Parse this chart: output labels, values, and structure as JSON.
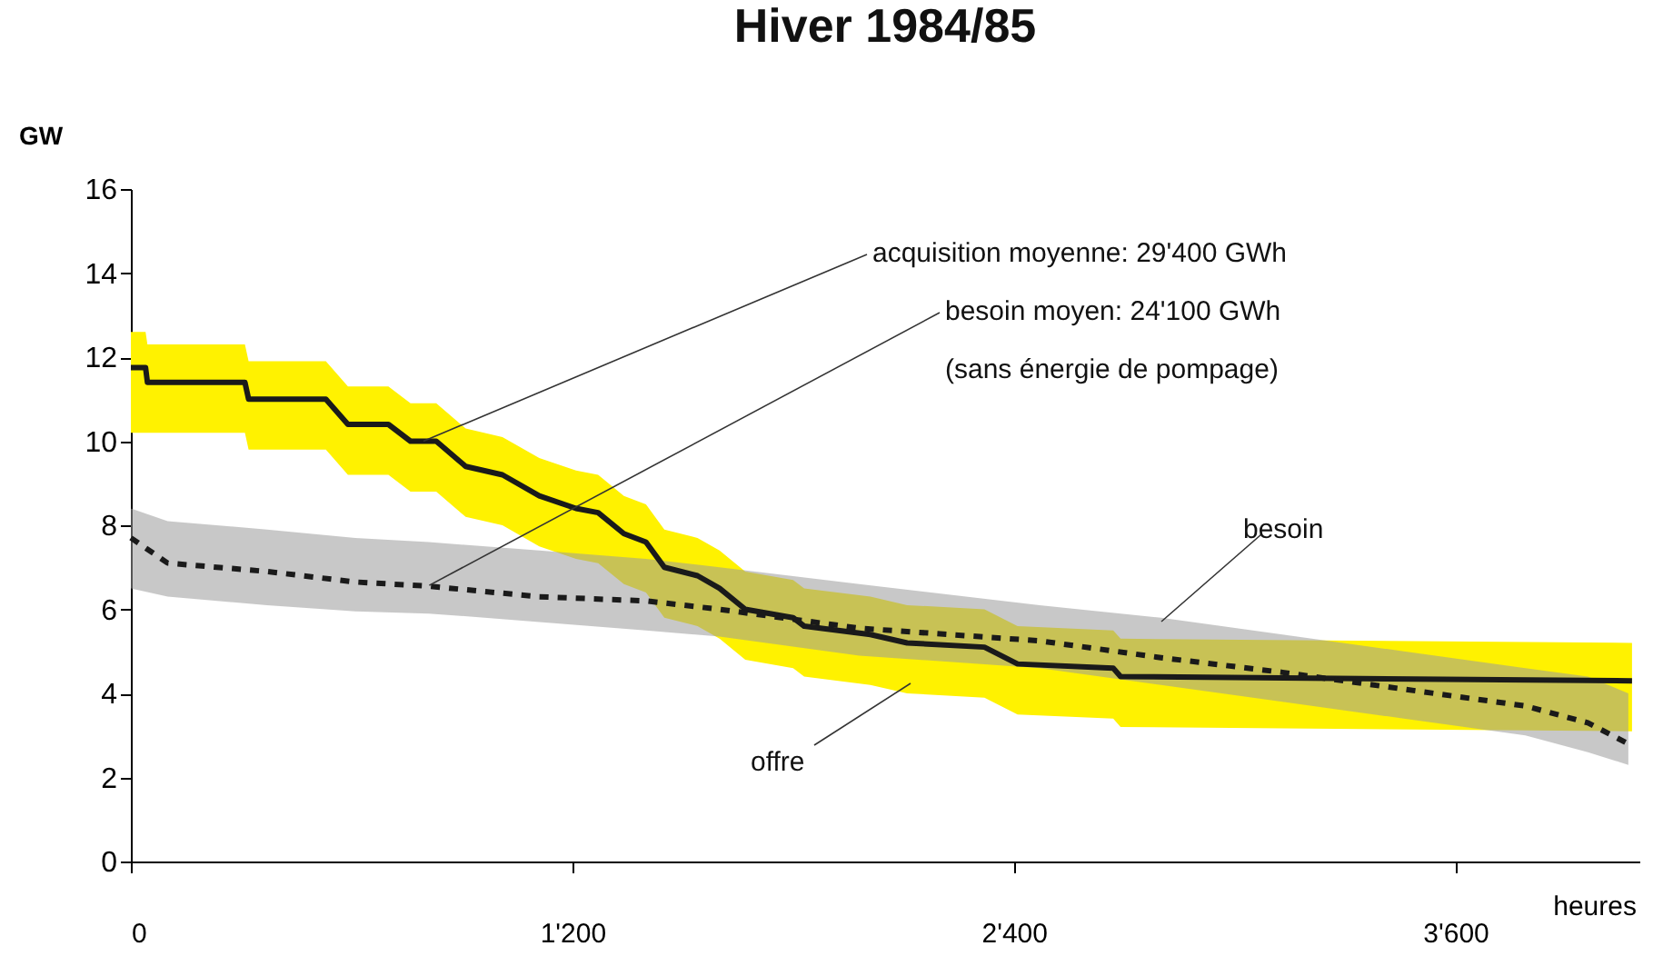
{
  "chart_data": {
    "type": "line",
    "title": "Hiver 1984/85",
    "xlabel": "heures",
    "ylabel": "GW",
    "xlim": [
      0,
      4100
    ],
    "xticks": [
      0,
      {
        "value": 1200,
        "label": "1'200"
      },
      {
        "value": 2400,
        "label": "2'400"
      },
      {
        "value": 3600,
        "label": "3'600"
      }
    ],
    "ylim": [
      0,
      16
    ],
    "yticks": [
      0,
      2,
      4,
      6,
      8,
      10,
      12,
      14,
      16
    ],
    "grid": false,
    "series": [
      {
        "name": "offre",
        "color": "#1a1a1a",
        "line_style": "solid",
        "x": [
          0,
          40,
          45,
          310,
          320,
          530,
          590,
          700,
          760,
          830,
          910,
          1010,
          1110,
          1210,
          1270,
          1340,
          1400,
          1450,
          1540,
          1600,
          1670,
          1800,
          1830,
          2010,
          2110,
          2320,
          2410,
          2670,
          2690,
          4080
        ],
        "values": [
          11.75,
          11.75,
          11.4,
          11.4,
          11.0,
          11.0,
          10.4,
          10.4,
          10.0,
          10.0,
          9.4,
          9.2,
          8.7,
          8.4,
          8.3,
          7.8,
          7.6,
          7.0,
          6.8,
          6.5,
          6.0,
          5.8,
          5.6,
          5.4,
          5.2,
          5.1,
          4.7,
          4.6,
          4.4,
          4.3
        ],
        "upper": [
          12.6,
          12.6,
          12.3,
          12.3,
          11.9,
          11.9,
          11.3,
          11.3,
          10.9,
          10.9,
          10.3,
          10.1,
          9.6,
          9.3,
          9.2,
          8.7,
          8.5,
          7.9,
          7.7,
          7.4,
          6.9,
          6.7,
          6.5,
          6.3,
          6.1,
          6.0,
          5.6,
          5.5,
          5.3,
          5.2
        ],
        "lower": [
          10.2,
          10.2,
          10.2,
          10.2,
          9.8,
          9.8,
          9.2,
          9.2,
          8.8,
          8.8,
          8.2,
          8.0,
          7.5,
          7.2,
          7.1,
          6.6,
          6.4,
          5.8,
          5.6,
          5.3,
          4.8,
          4.6,
          4.4,
          4.2,
          4.0,
          3.9,
          3.5,
          3.4,
          3.2,
          3.1
        ]
      },
      {
        "name": "besoin",
        "color": "#1a1a1a",
        "line_style": "dotted",
        "x": [
          0,
          100,
          370,
          610,
          810,
          1110,
          1400,
          1600,
          1980,
          2470,
          2800,
          3130,
          3460,
          3790,
          3960,
          4070
        ],
        "values": [
          7.7,
          7.1,
          6.9,
          6.65,
          6.55,
          6.3,
          6.2,
          6.0,
          5.55,
          5.25,
          4.85,
          4.5,
          4.1,
          3.7,
          3.3,
          2.8
        ],
        "upper": [
          8.4,
          8.1,
          7.9,
          7.7,
          7.6,
          7.4,
          7.2,
          7.0,
          6.6,
          6.1,
          5.8,
          5.4,
          5.0,
          4.6,
          4.4,
          4.0
        ],
        "lower": [
          6.5,
          6.3,
          6.1,
          5.95,
          5.9,
          5.7,
          5.5,
          5.35,
          4.9,
          4.6,
          4.2,
          3.8,
          3.4,
          3.0,
          2.6,
          2.3
        ]
      }
    ],
    "annotations": [
      {
        "text": "acquisition moyenne:  29'400 GWh",
        "x": 795,
        "y": 10.0
      },
      {
        "text": "besoin moyen:  24'100 GWh",
        "x": 811,
        "y": 6.57
      },
      "(sans énergie de pompage)"
    ]
  }
}
